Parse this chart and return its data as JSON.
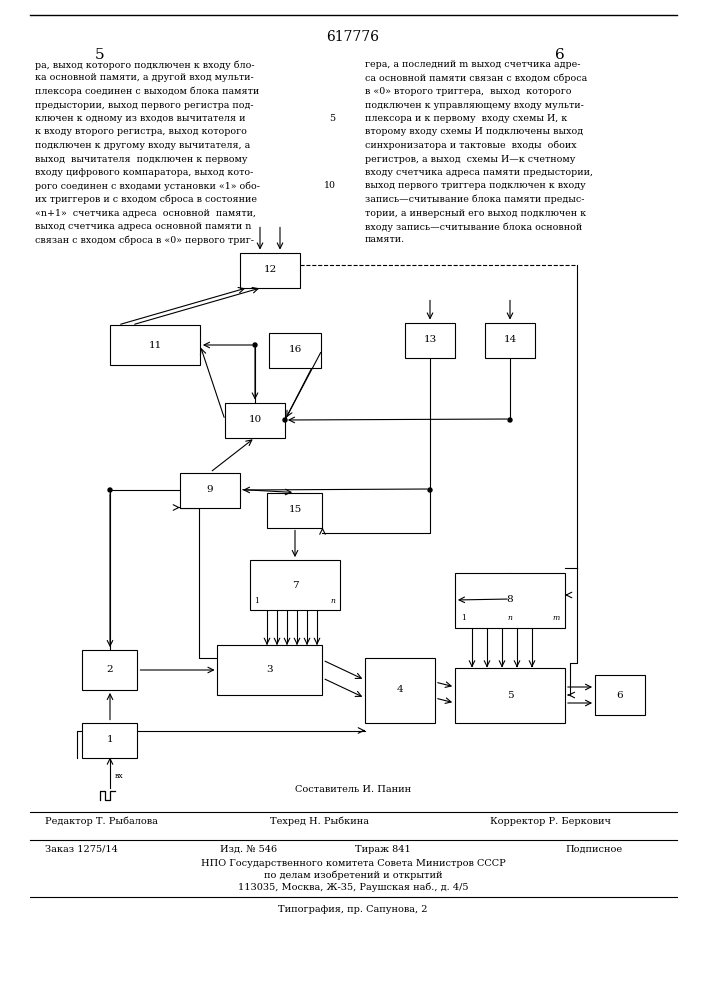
{
  "page_number_center": "617776",
  "page_left": "5",
  "page_right": "6",
  "footer_composer": "Составитель И. Панин",
  "footer_editor": "Редактор Т. Рыбалова",
  "footer_tech": "Техред Н. Рыбкина",
  "footer_corrector": "Корректор Р. Беркович",
  "footer_order": "Заказ 1275/14",
  "footer_edition": "Изд. № 546",
  "footer_print": "Тираж 841",
  "footer_subscription": "Подписное",
  "footer_org1": "НПО Государственного комитета Совета Министров СССР",
  "footer_org2": "по делам изобретений и открытий",
  "footer_org3": "113035, Москва, Ж-35, Раушская наб., д. 4/5",
  "footer_print2": "Типография, пр. Сапунова, 2",
  "bg_color": "#ffffff",
  "text_color": "#000000",
  "left_lines": [
    "ра, выход которого подключен к входу бло-",
    "ка основной памяти, а другой вход мульти-",
    "плексора соединен с выходом блока памяти",
    "предыстории, выход первого регистра под-",
    "ключен к одному из входов вычитателя и",
    "к входу второго регистра, выход которого",
    "подключен к другому входу вычитателя, а",
    "выход  вычитателя  подключен к первому",
    "входу цифрового компаратора, выход кото-",
    "рого соединен с входами установки «1» обо-",
    "их триггеров и с входом сброса в состояние",
    "«n+1»  счетчика адреса  основной  памяти,",
    "выход счетчика адреса основной памяти n",
    "связан с входом сброса в «0» первого триг-"
  ],
  "right_lines": [
    "гера, а последний m выход счетчика адре-",
    "са основной памяти связан с входом сброса",
    "в «0» второго триггера,  выход  которого",
    "подключен к управляющему входу мульти-",
    "плексора и к первому  входу схемы И, к",
    "второму входу схемы И подключены выход",
    "синхронизатора и тактовые  входы  обоих",
    "регистров, а выход  схемы И—к счетному",
    "входу счетчика адреса памяти предыстории,",
    "выход первого триггера подключен к входу",
    "запись—считывание блока памяти предыс-",
    "тории, а инверсный его выход подключен к",
    "входу запись—считывание блока основной",
    "памяти."
  ],
  "blocks": {
    "12": [
      270,
      730,
      60,
      35
    ],
    "11": [
      155,
      655,
      90,
      40
    ],
    "16": [
      295,
      650,
      52,
      35
    ],
    "13": [
      430,
      660,
      50,
      35
    ],
    "14": [
      510,
      660,
      50,
      35
    ],
    "10": [
      255,
      580,
      60,
      35
    ],
    "9": [
      210,
      510,
      60,
      35
    ],
    "15": [
      295,
      490,
      55,
      35
    ],
    "7": [
      295,
      415,
      90,
      50
    ],
    "3": [
      270,
      330,
      105,
      50
    ],
    "4": [
      400,
      310,
      70,
      65
    ],
    "2": [
      110,
      330,
      55,
      40
    ],
    "1": [
      110,
      260,
      55,
      35
    ],
    "8": [
      510,
      400,
      110,
      55
    ],
    "5": [
      510,
      305,
      110,
      55
    ],
    "6": [
      620,
      305,
      50,
      40
    ]
  }
}
